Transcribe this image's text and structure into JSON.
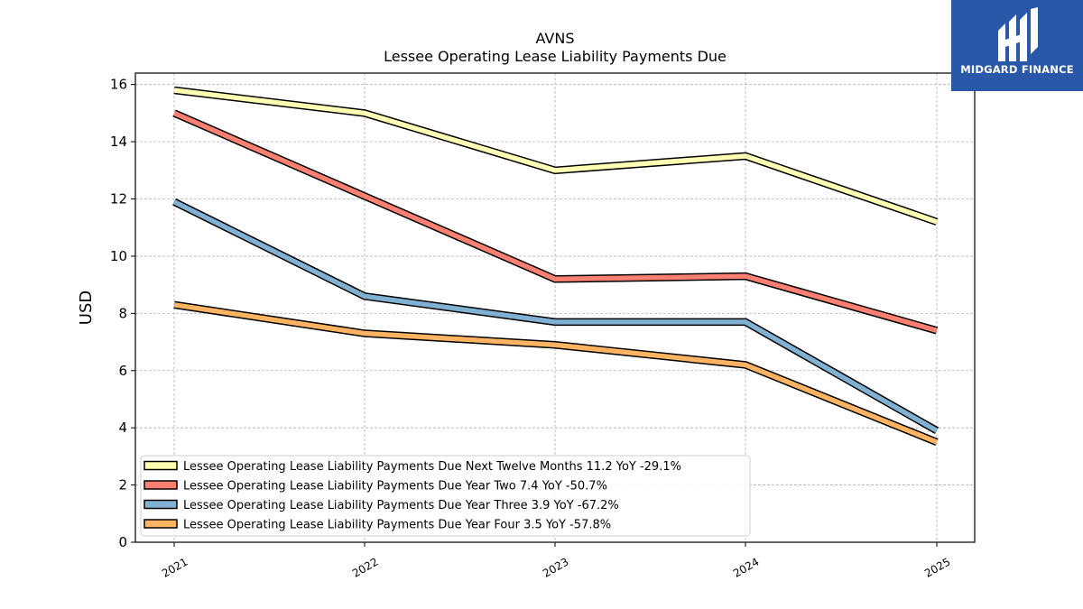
{
  "brand": {
    "name": "MIDGARD FINANCE",
    "color": "#2a58a8"
  },
  "chart_data": {
    "type": "line",
    "title": "AVNS",
    "subtitle": "Lessee Operating Lease Liability Payments Due",
    "xlabel": "",
    "ylabel": "USD",
    "ylim": [
      0,
      16.4
    ],
    "yticks": [
      0,
      2,
      4,
      6,
      8,
      10,
      12,
      14,
      16
    ],
    "ytick_labels": [
      "0",
      "2",
      "4",
      "6",
      "8",
      "10",
      "12",
      "14",
      "16"
    ],
    "categories": [
      "2021",
      "2022",
      "2023",
      "2024",
      "2025"
    ],
    "grid": true,
    "legend_position": "lower-left",
    "series": [
      {
        "name": "Lessee Operating Lease Liability Payments Due Next Twelve Months  11.2 YoY -29.1%",
        "color": "#ffffb3",
        "values": [
          15.8,
          15.0,
          13.0,
          13.5,
          11.2
        ]
      },
      {
        "name": "Lessee Operating Lease Liability Payments Due Year Two  7.4 YoY -50.7%",
        "color": "#fb8072",
        "values": [
          15.0,
          12.1,
          9.2,
          9.3,
          7.4
        ]
      },
      {
        "name": "Lessee Operating Lease Liability Payments Due Year Three  3.9 YoY -67.2%",
        "color": "#80b1d3",
        "values": [
          11.9,
          8.6,
          7.7,
          7.7,
          3.9
        ]
      },
      {
        "name": "Lessee Operating Lease Liability Payments Due Year Four  3.5 YoY -57.8%",
        "color": "#fdb462",
        "values": [
          8.3,
          7.3,
          6.9,
          6.2,
          3.5
        ]
      }
    ]
  }
}
